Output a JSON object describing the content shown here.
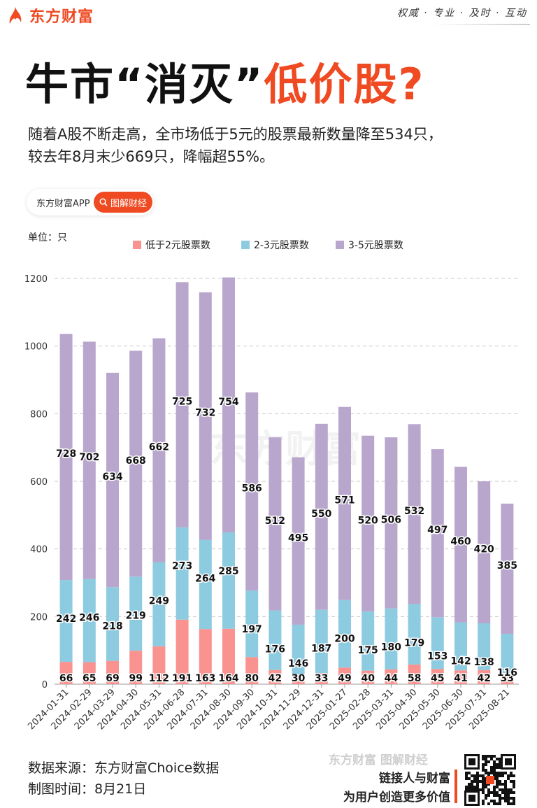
{
  "header": {
    "brand": "东方财富",
    "slogan": "权威 · 专业 · 及时 · 互动"
  },
  "title": {
    "part1": "牛市“消灭”",
    "part2": "低价股?"
  },
  "subtitle": {
    "line1": "随着A股不断走高，全市场低于5元的股票最新数量降至534只，",
    "line2": "较去年8月末少669只，降幅超55%。"
  },
  "chip": {
    "label": "东方财富APP",
    "button": "图解财经"
  },
  "colors": {
    "brand": "#ef4a22",
    "series_low": "#fa938f",
    "series_mid": "#8dcbe0",
    "series_high": "#b9a6cd"
  },
  "chart_data": {
    "type": "bar",
    "stacked": true,
    "unit_label": "单位：只",
    "categories": [
      "2024-01-31",
      "2024-02-29",
      "2024-03-29",
      "2024-04-30",
      "2024-05-31",
      "2024-06-28",
      "2024-07-31",
      "2024-08-30",
      "2024-09-30",
      "2024-10-31",
      "2024-11-29",
      "2024-12-31",
      "2025-01-27",
      "2025-02-28",
      "2025-03-31",
      "2025-04-30",
      "2025-05-30",
      "2025-06-30",
      "2025-07-31",
      "2025-08-21"
    ],
    "series": [
      {
        "name": "低于2元股票数",
        "color": "#fa938f",
        "values": [
          66,
          65,
          69,
          99,
          112,
          191,
          163,
          164,
          80,
          42,
          30,
          33,
          49,
          40,
          44,
          58,
          45,
          41,
          42,
          33
        ]
      },
      {
        "name": "2-3元股票数",
        "color": "#8dcbe0",
        "values": [
          242,
          246,
          218,
          219,
          249,
          273,
          264,
          285,
          197,
          176,
          146,
          187,
          200,
          175,
          180,
          179,
          153,
          142,
          138,
          116
        ]
      },
      {
        "name": "3-5元股票数",
        "color": "#b9a6cd",
        "values": [
          728,
          702,
          634,
          668,
          662,
          725,
          732,
          754,
          586,
          512,
          495,
          550,
          571,
          520,
          506,
          532,
          497,
          460,
          420,
          385
        ]
      }
    ],
    "y_ticks": [
      0,
      200,
      400,
      600,
      800,
      1000,
      1200
    ],
    "ylim": [
      0,
      1200
    ],
    "grid": true,
    "legend_position": "top-center",
    "watermark": "东方财富"
  },
  "footer": {
    "source": "数据来源：东方财富Choice数据",
    "date": "制图时间：8月21日",
    "watermark": "东方财富 图解财经",
    "slogan1": "链接人与财富",
    "slogan2": "为用户创造更多价值"
  }
}
